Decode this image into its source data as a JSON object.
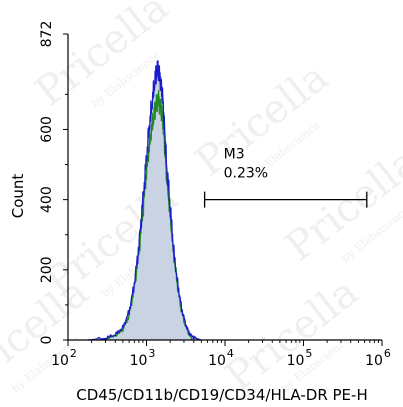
{
  "chart_data": {
    "type": "area",
    "xlabel": "CD45/CD11b/CD19/CD34/HLA-DR PE-H",
    "ylabel": "Count",
    "x_scale": "log",
    "xlim": [
      100,
      1000000
    ],
    "ylim": [
      0,
      872
    ],
    "x_ticks": [
      {
        "value": 100,
        "base": "10",
        "exp": "2"
      },
      {
        "value": 1000,
        "base": "10",
        "exp": "3"
      },
      {
        "value": 10000,
        "base": "10",
        "exp": "4"
      },
      {
        "value": 100000,
        "base": "10",
        "exp": "5"
      },
      {
        "value": 1000000,
        "base": "10",
        "exp": "6"
      }
    ],
    "y_ticks": [
      {
        "value": 0,
        "label": "0"
      },
      {
        "value": 200,
        "label": "200"
      },
      {
        "value": 400,
        "label": "400"
      },
      {
        "value": 600,
        "label": "600"
      },
      {
        "value": 872,
        "label": "872"
      }
    ],
    "grid": false,
    "series": [
      {
        "color": "#1c1ccc",
        "fill": "#c9d3e3",
        "x": [
          180,
          300,
          400,
          500,
          600,
          700,
          800,
          900,
          1000,
          1100,
          1200,
          1300,
          1400,
          1500,
          1600,
          1700,
          1800,
          2000,
          2200,
          2500,
          2800,
          3200,
          3600,
          4200,
          5000
        ],
        "y": [
          0,
          5,
          15,
          35,
          80,
          160,
          270,
          400,
          520,
          620,
          690,
          750,
          775,
          745,
          700,
          600,
          500,
          380,
          260,
          160,
          90,
          40,
          15,
          5,
          0
        ]
      },
      {
        "color": "#1e8c1e",
        "x": [
          250,
          400,
          500,
          600,
          700,
          800,
          900,
          1000,
          1100,
          1200,
          1300,
          1400,
          1500,
          1600,
          1700,
          1800,
          2000,
          2200,
          2500,
          2800,
          3200,
          3800
        ],
        "y": [
          0,
          12,
          30,
          70,
          150,
          250,
          370,
          480,
          560,
          620,
          660,
          690,
          670,
          640,
          560,
          470,
          360,
          250,
          150,
          80,
          35,
          0
        ]
      }
    ],
    "gate": {
      "name": "M3",
      "percent": "0.23%",
      "x_start": 5500,
      "x_end": 640000,
      "y": 400
    }
  },
  "watermark": {
    "brand": "Pricella",
    "byline": "by Elabscience"
  }
}
